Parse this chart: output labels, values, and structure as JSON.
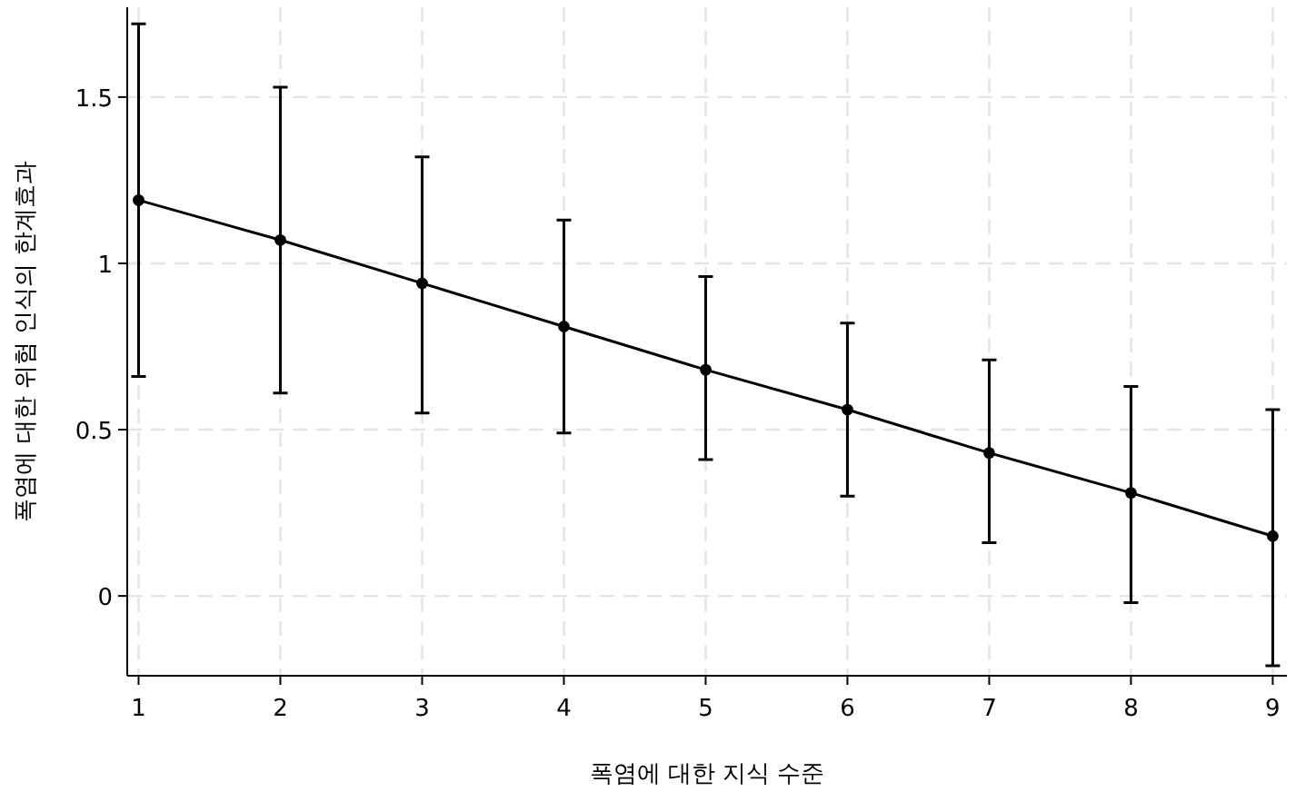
{
  "chart_data": {
    "type": "line",
    "xlabel": "폭염에 대한 지식 수준",
    "ylabel": "폭염에 대한 위험 인식의 한계효과",
    "x": [
      1,
      2,
      3,
      4,
      5,
      6,
      7,
      8,
      9
    ],
    "series": [
      {
        "color": "#000000",
        "values": [
          1.19,
          1.07,
          0.94,
          0.81,
          0.68,
          0.56,
          0.43,
          0.31,
          0.18
        ],
        "errors": [
          [
            0.66,
            1.72
          ],
          [
            0.61,
            1.53
          ],
          [
            0.55,
            1.32
          ],
          [
            0.49,
            1.13
          ],
          [
            0.41,
            0.96
          ],
          [
            0.3,
            0.82
          ],
          [
            0.16,
            0.71
          ],
          [
            -0.02,
            0.63
          ],
          [
            -0.21,
            0.56
          ]
        ]
      }
    ],
    "xlim": [
      0.92,
      9.1
    ],
    "ylim": [
      -0.24,
      1.77
    ],
    "xticks": [
      1,
      2,
      3,
      4,
      5,
      6,
      7,
      8,
      9
    ],
    "yticks": [
      0,
      0.5,
      1,
      1.5
    ],
    "grid": true,
    "marker": "circle",
    "line_style": "solid"
  }
}
